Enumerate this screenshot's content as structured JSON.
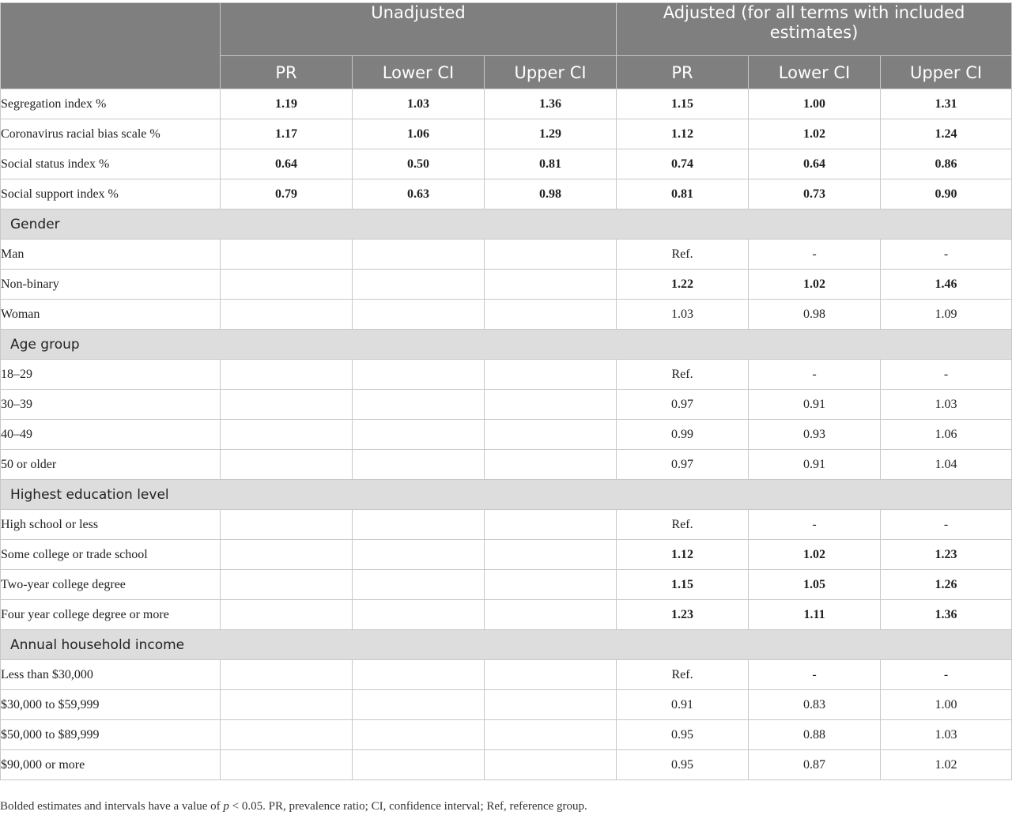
{
  "header": {
    "group_unadjusted": "Unadjusted",
    "group_adjusted": "Adjusted (for all terms with included estimates)",
    "columns": [
      "PR",
      "Lower CI",
      "Upper CI",
      "PR",
      "Lower CI",
      "Upper CI"
    ]
  },
  "rows": [
    {
      "label": "Segregation index %",
      "values": [
        "1.19",
        "1.03",
        "1.36",
        "1.15",
        "1.00",
        "1.31"
      ],
      "bold": [
        true,
        true,
        true,
        true,
        true,
        true
      ]
    },
    {
      "label": "Coronavirus racial bias scale %",
      "values": [
        "1.17",
        "1.06",
        "1.29",
        "1.12",
        "1.02",
        "1.24"
      ],
      "bold": [
        true,
        true,
        true,
        true,
        true,
        true
      ]
    },
    {
      "label": "Social status index %",
      "values": [
        "0.64",
        "0.50",
        "0.81",
        "0.74",
        "0.64",
        "0.86"
      ],
      "bold": [
        true,
        true,
        true,
        true,
        true,
        true
      ]
    },
    {
      "label": "Social support index %",
      "values": [
        "0.79",
        "0.63",
        "0.98",
        "0.81",
        "0.73",
        "0.90"
      ],
      "bold": [
        true,
        true,
        true,
        true,
        true,
        true
      ]
    },
    {
      "section": "Gender"
    },
    {
      "label": "Man",
      "values": [
        "",
        "",
        "",
        "Ref.",
        "-",
        "-"
      ],
      "bold": [
        false,
        false,
        false,
        false,
        false,
        false
      ]
    },
    {
      "label": "Non-binary",
      "values": [
        "",
        "",
        "",
        "1.22",
        "1.02",
        "1.46"
      ],
      "bold": [
        false,
        false,
        false,
        true,
        true,
        true
      ]
    },
    {
      "label": "Woman",
      "values": [
        "",
        "",
        "",
        "1.03",
        "0.98",
        "1.09"
      ],
      "bold": [
        false,
        false,
        false,
        false,
        false,
        false
      ]
    },
    {
      "section": "Age group"
    },
    {
      "label": "18–29",
      "values": [
        "",
        "",
        "",
        "Ref.",
        "-",
        "-"
      ],
      "bold": [
        false,
        false,
        false,
        false,
        false,
        false
      ]
    },
    {
      "label": "30–39",
      "values": [
        "",
        "",
        "",
        "0.97",
        "0.91",
        "1.03"
      ],
      "bold": [
        false,
        false,
        false,
        false,
        false,
        false
      ]
    },
    {
      "label": "40–49",
      "values": [
        "",
        "",
        "",
        "0.99",
        "0.93",
        "1.06"
      ],
      "bold": [
        false,
        false,
        false,
        false,
        false,
        false
      ]
    },
    {
      "label": "50 or older",
      "values": [
        "",
        "",
        "",
        "0.97",
        "0.91",
        "1.04"
      ],
      "bold": [
        false,
        false,
        false,
        false,
        false,
        false
      ]
    },
    {
      "section": "Highest education level"
    },
    {
      "label": "High school or less",
      "values": [
        "",
        "",
        "",
        "Ref.",
        "-",
        "-"
      ],
      "bold": [
        false,
        false,
        false,
        false,
        false,
        false
      ]
    },
    {
      "label": "Some college or trade school",
      "values": [
        "",
        "",
        "",
        "1.12",
        "1.02",
        "1.23"
      ],
      "bold": [
        false,
        false,
        false,
        true,
        true,
        true
      ]
    },
    {
      "label": "Two-year college degree",
      "values": [
        "",
        "",
        "",
        "1.15",
        "1.05",
        "1.26"
      ],
      "bold": [
        false,
        false,
        false,
        true,
        true,
        true
      ]
    },
    {
      "label": "Four year college degree or more",
      "values": [
        "",
        "",
        "",
        "1.23",
        "1.11",
        "1.36"
      ],
      "bold": [
        false,
        false,
        false,
        true,
        true,
        true
      ]
    },
    {
      "section": "Annual household income"
    },
    {
      "label": "Less than $30,000",
      "values": [
        "",
        "",
        "",
        "Ref.",
        "-",
        "-"
      ],
      "bold": [
        false,
        false,
        false,
        false,
        false,
        false
      ]
    },
    {
      "label": "$30,000 to $59,999",
      "values": [
        "",
        "",
        "",
        "0.91",
        "0.83",
        "1.00"
      ],
      "bold": [
        false,
        false,
        false,
        false,
        false,
        false
      ]
    },
    {
      "label": "$50,000 to $89,999",
      "values": [
        "",
        "",
        "",
        "0.95",
        "0.88",
        "1.03"
      ],
      "bold": [
        false,
        false,
        false,
        false,
        false,
        false
      ]
    },
    {
      "label": "$90,000 or more",
      "values": [
        "",
        "",
        "",
        "0.95",
        "0.87",
        "1.02"
      ],
      "bold": [
        false,
        false,
        false,
        false,
        false,
        false
      ]
    }
  ],
  "footnote": {
    "before": "Bolded estimates and intervals have a value of ",
    "p_symbol": "p",
    "after": " < 0.05. PR, prevalence ratio; CI, confidence interval; Ref, reference group."
  }
}
